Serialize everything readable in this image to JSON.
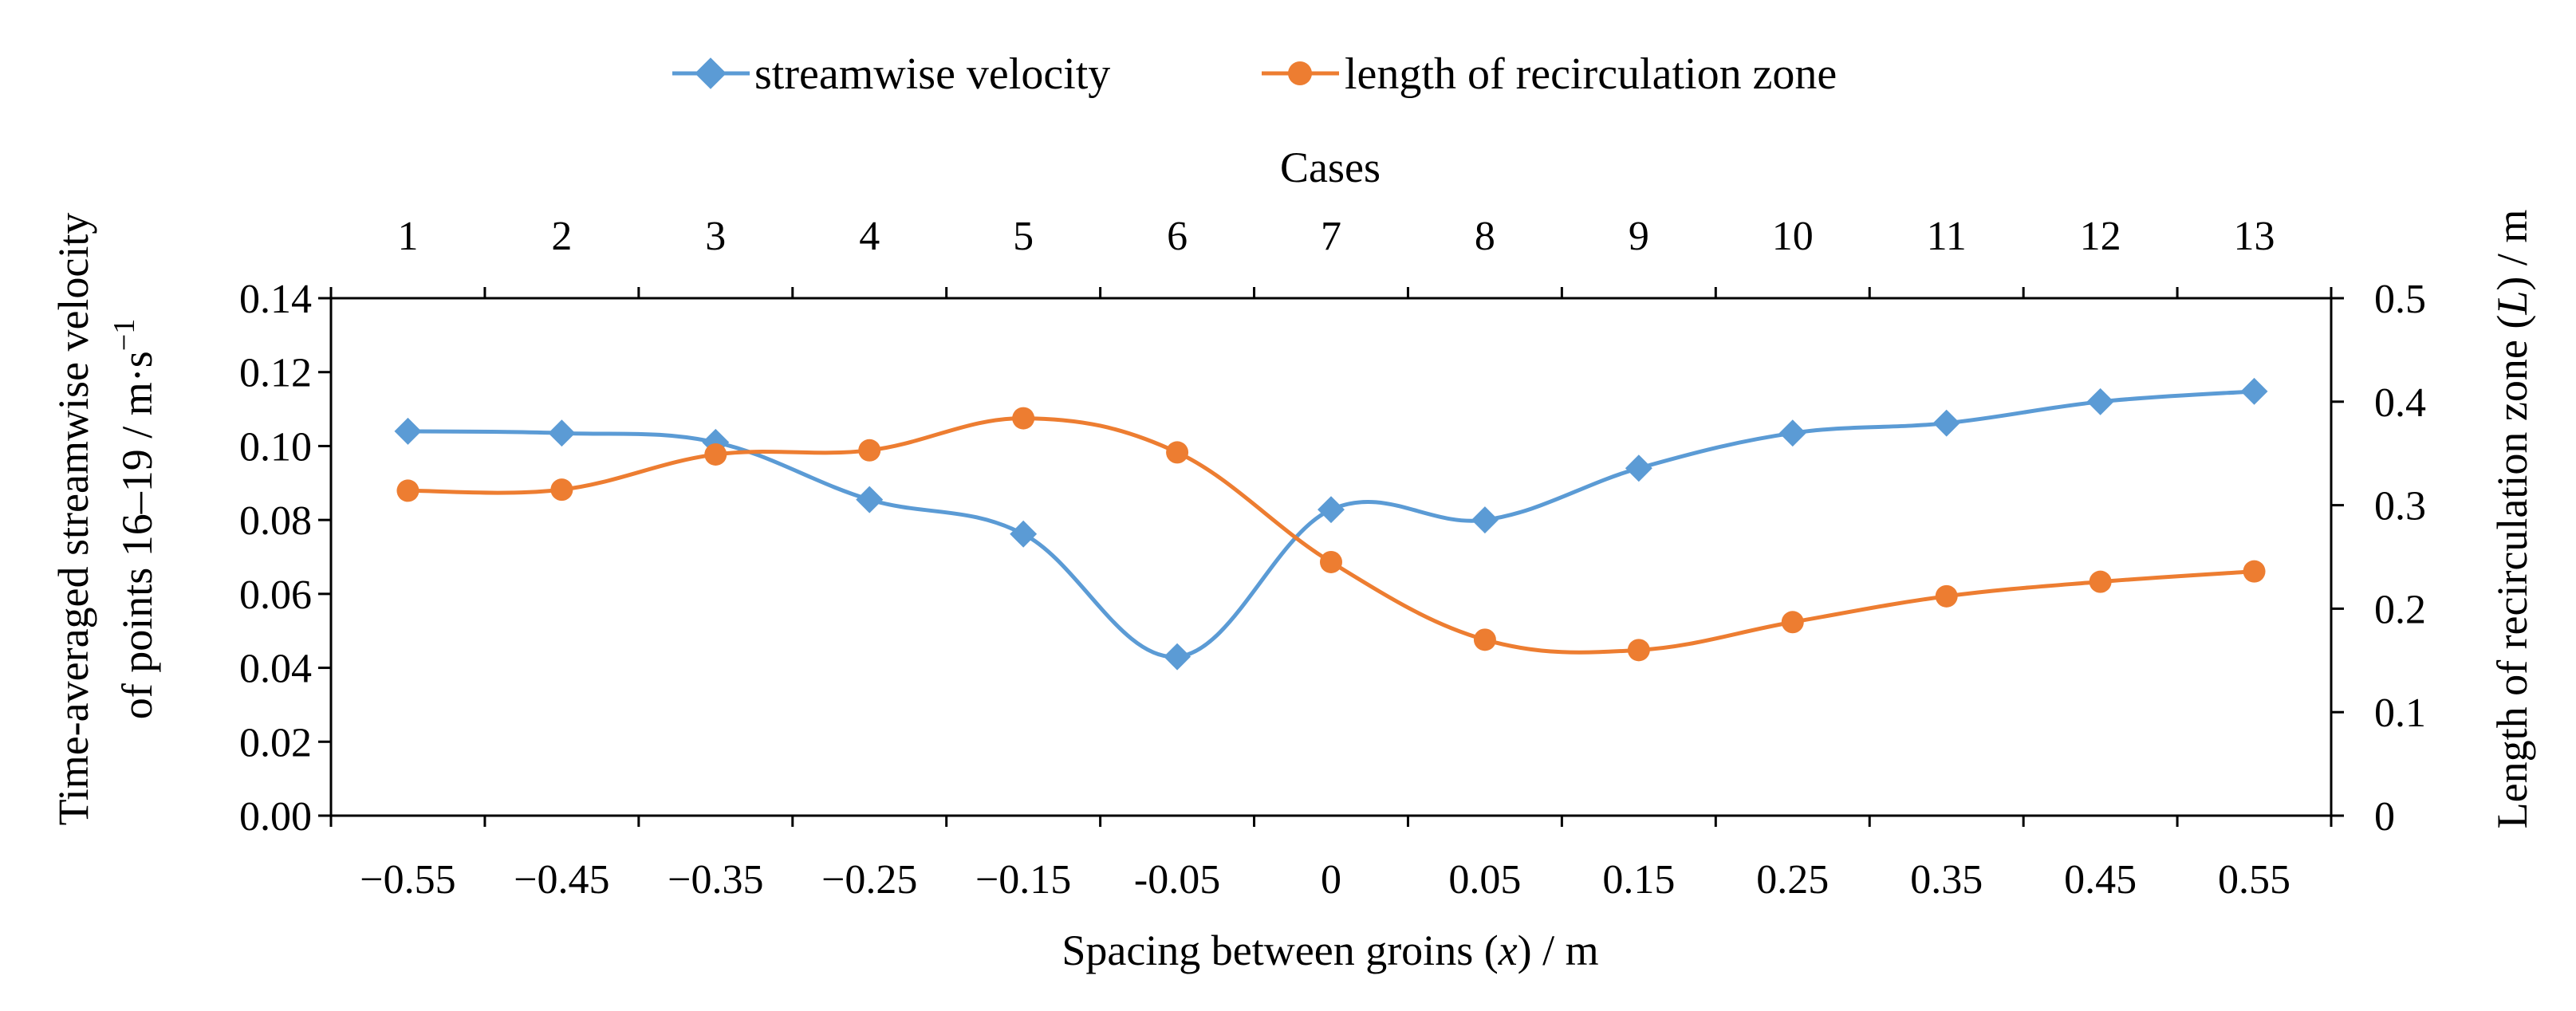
{
  "chart_data": {
    "type": "line",
    "title": "",
    "xlabel": "Spacing between groins (x) / m",
    "xlabel_parts": {
      "pre": "Spacing between groins (",
      "var": "x",
      "post": ") / m"
    },
    "x_top_label": "Cases",
    "ylabel_left_line1": "Time-averaged streamwise velocity",
    "ylabel_left_line2_pre": "of points 16–19 / m·s",
    "ylabel_left_sup": "−1",
    "ylabel_right_parts": {
      "pre": "Length of recirculation zone (",
      "var": "L",
      "post": ") / m"
    },
    "categories": [
      "−0.55",
      "−0.45",
      "−0.35",
      "−0.25",
      "−0.15",
      "-0.05",
      "0",
      "0.05",
      "0.15",
      "0.25",
      "0.35",
      "0.45",
      "0.55"
    ],
    "top_categories": [
      "1",
      "2",
      "3",
      "4",
      "5",
      "6",
      "7",
      "8",
      "9",
      "10",
      "11",
      "12",
      "13"
    ],
    "y_left": {
      "min": 0,
      "max": 0.14,
      "step": 0.02,
      "ticks": [
        "0.00",
        "0.02",
        "0.04",
        "0.06",
        "0.08",
        "0.10",
        "0.12",
        "0.14"
      ]
    },
    "y_right": {
      "min": 0,
      "max": 0.5,
      "step": 0.1,
      "ticks": [
        "0",
        "0.1",
        "0.2",
        "0.3",
        "0.4",
        "0.5"
      ]
    },
    "series": [
      {
        "name": "streamwise velocity",
        "axis": "left",
        "marker": "diamond",
        "color": "#5B9BD5",
        "values": [
          0.104,
          0.1035,
          0.101,
          0.0855,
          0.0762,
          0.043,
          0.0828,
          0.08,
          0.094,
          0.1035,
          0.1062,
          0.112,
          0.1148
        ]
      },
      {
        "name": "length of recirculation zone",
        "axis": "right",
        "marker": "circle",
        "color": "#ED7D31",
        "values": [
          0.314,
          0.315,
          0.349,
          0.353,
          0.384,
          0.351,
          0.245,
          0.17,
          0.16,
          0.187,
          0.212,
          0.226,
          0.236
        ]
      }
    ],
    "legend_position": "top-center"
  }
}
